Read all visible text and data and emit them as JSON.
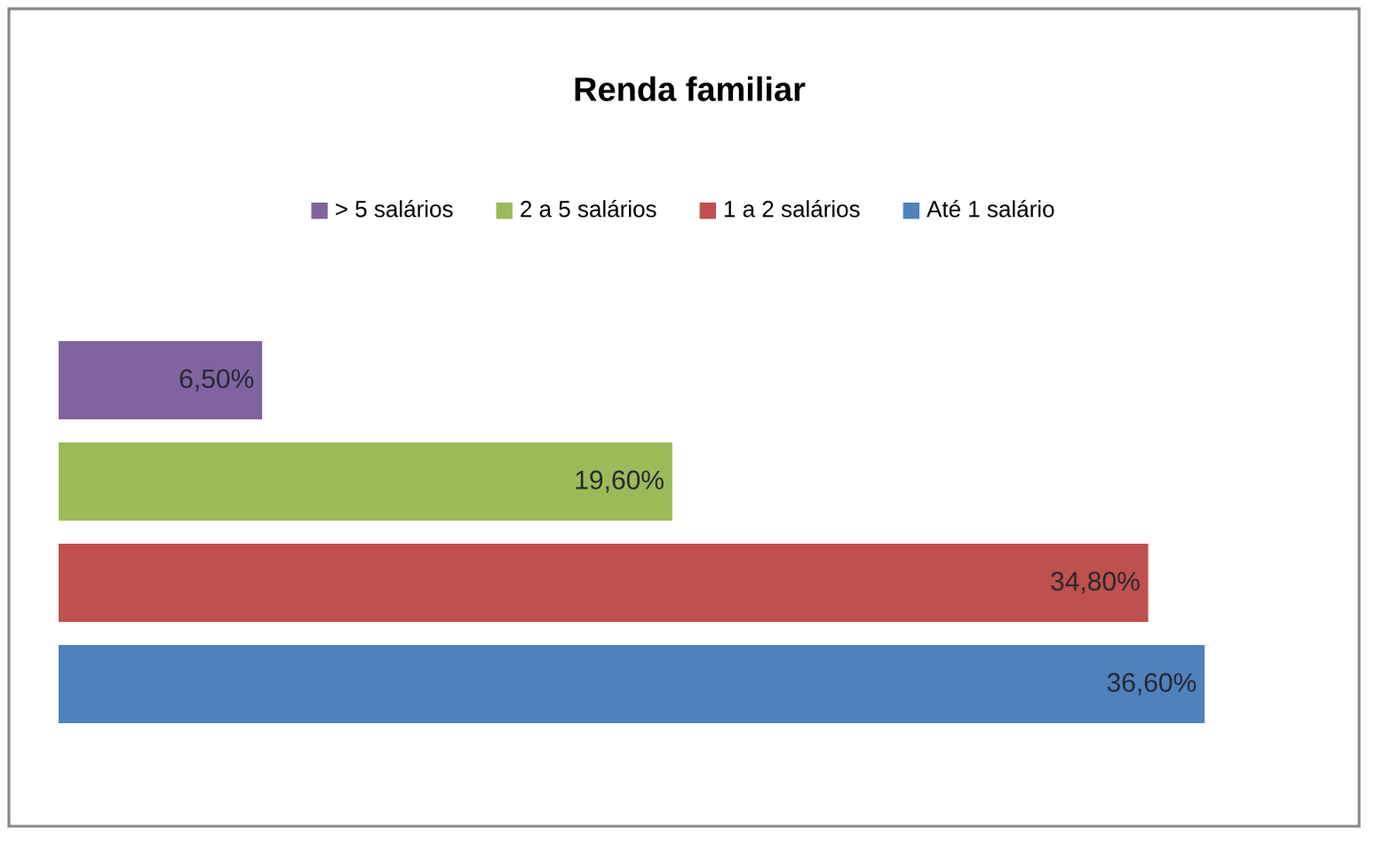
{
  "chart_data": {
    "type": "bar",
    "orientation": "horizontal",
    "title": "Renda familiar",
    "categories": [
      null
    ],
    "series": [
      {
        "name": "> 5 salários",
        "color": "#8064a2",
        "values": [
          6.5
        ],
        "value_labels": [
          "6,50%"
        ]
      },
      {
        "name": "2 a 5 salários",
        "color": "#9bbb59",
        "values": [
          19.6
        ],
        "value_labels": [
          "19,60%"
        ]
      },
      {
        "name": "1 a 2 salários",
        "color": "#c0504d",
        "values": [
          34.8
        ],
        "value_labels": [
          "34,80%"
        ]
      },
      {
        "name": "Até 1 salário",
        "color": "#4f81bd",
        "values": [
          36.6
        ],
        "value_labels": [
          "36,60%"
        ]
      }
    ],
    "legend": "top"
  }
}
